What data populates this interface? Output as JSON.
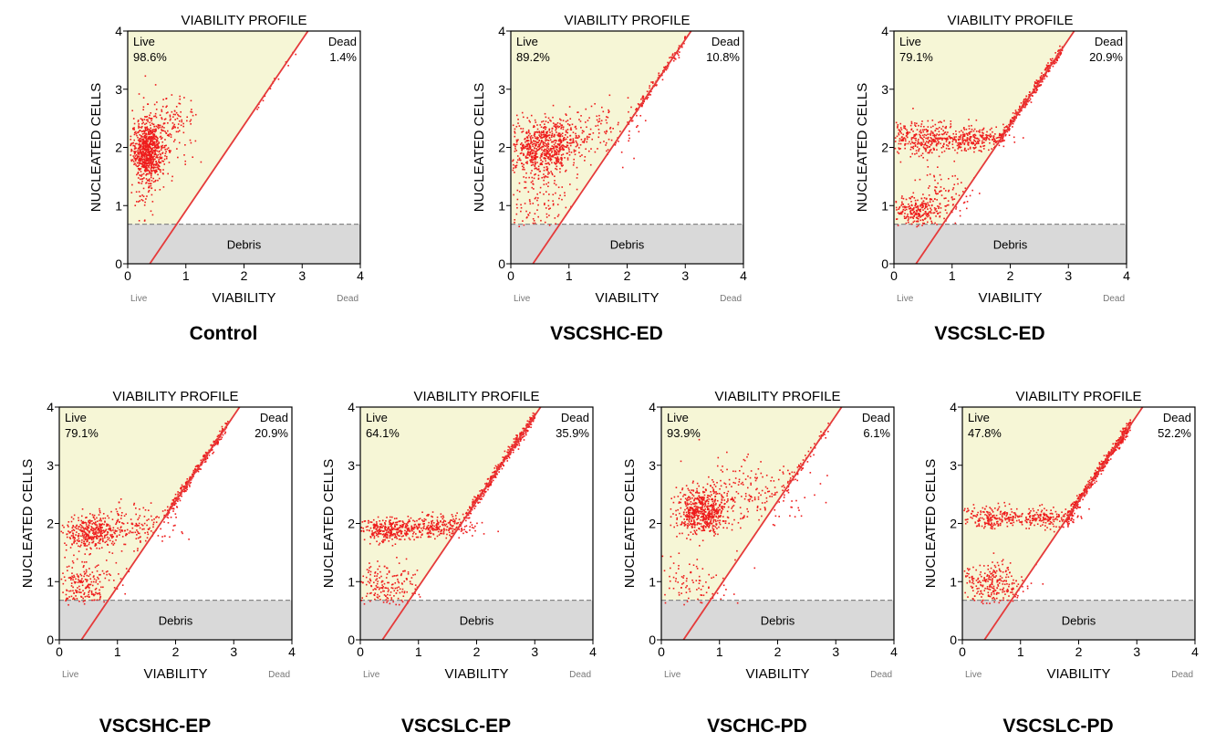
{
  "chart_data": [
    {
      "type": "scatter",
      "title": "VIABILITY PROFILE",
      "xlabel": "VIABILITY",
      "ylabel": "NUCLEATED CELLS",
      "x_end_labels": [
        "Live",
        "Dead"
      ],
      "xlim": [
        0,
        4
      ],
      "ylim": [
        0,
        4
      ],
      "xticks": [
        "0",
        "1",
        "2",
        "3",
        "4"
      ],
      "yticks": [
        "0",
        "1",
        "2",
        "3",
        "4"
      ],
      "regions": {
        "live": "Live",
        "dead": "Dead",
        "debris": "Debris"
      },
      "debris_threshold": 0.68,
      "gate_line": {
        "x0": 0.38,
        "y0": 0,
        "x1": 3.1,
        "y1": 4
      },
      "live_pct": "98.6%",
      "dead_pct": "1.4%",
      "caption": "Control",
      "clusters": [
        {
          "cx": 0.35,
          "cy": 1.95,
          "sx": 0.14,
          "sy": 0.25,
          "n": 750
        },
        {
          "cx": 0.7,
          "cy": 2.35,
          "sx": 0.25,
          "sy": 0.3,
          "n": 150
        },
        {
          "cx": 0.3,
          "cy": 1.3,
          "sx": 0.12,
          "sy": 0.35,
          "n": 60
        }
      ],
      "dead_band": {
        "x0": 2.2,
        "x1": 2.9,
        "n": 15,
        "jitter": 0.05
      }
    },
    {
      "type": "scatter",
      "title": "VIABILITY PROFILE",
      "xlabel": "VIABILITY",
      "ylabel": "NUCLEATED CELLS",
      "x_end_labels": [
        "Live",
        "Dead"
      ],
      "xlim": [
        0,
        4
      ],
      "ylim": [
        0,
        4
      ],
      "xticks": [
        "0",
        "1",
        "2",
        "3",
        "4"
      ],
      "yticks": [
        "0",
        "1",
        "2",
        "3",
        "4"
      ],
      "regions": {
        "live": "Live",
        "dead": "Dead",
        "debris": "Debris"
      },
      "debris_threshold": 0.68,
      "gate_line": {
        "x0": 0.38,
        "y0": 0,
        "x1": 3.1,
        "y1": 4
      },
      "live_pct": "89.2%",
      "dead_pct": "10.8%",
      "caption": "VSCSHC-ED",
      "clusters": [
        {
          "cx": 0.55,
          "cy": 2.0,
          "sx": 0.3,
          "sy": 0.22,
          "n": 650
        },
        {
          "cx": 1.3,
          "cy": 2.3,
          "sx": 0.45,
          "sy": 0.22,
          "n": 160
        },
        {
          "cx": 0.5,
          "cy": 1.2,
          "sx": 0.28,
          "sy": 0.35,
          "n": 150
        }
      ],
      "dead_band": {
        "x0": 2.0,
        "x1": 3.0,
        "n": 120,
        "jitter": 0.05
      }
    },
    {
      "type": "scatter",
      "title": "VIABILITY PROFILE",
      "xlabel": "VIABILITY",
      "ylabel": "NUCLEATED CELLS",
      "x_end_labels": [
        "Live",
        "Dead"
      ],
      "xlim": [
        0,
        4
      ],
      "ylim": [
        0,
        4
      ],
      "xticks": [
        "0",
        "1",
        "2",
        "3",
        "4"
      ],
      "yticks": [
        "0",
        "1",
        "2",
        "3",
        "4"
      ],
      "regions": {
        "live": "Live",
        "dead": "Dead",
        "debris": "Debris"
      },
      "debris_threshold": 0.68,
      "gate_line": {
        "x0": 0.38,
        "y0": 0,
        "x1": 3.1,
        "y1": 4
      },
      "live_pct": "79.1%",
      "dead_pct": "20.9%",
      "caption": "VSCSLC-ED",
      "clusters": [
        {
          "cx": 0.5,
          "cy": 2.15,
          "sx": 0.32,
          "sy": 0.15,
          "n": 320
        },
        {
          "cx": 1.35,
          "cy": 2.15,
          "sx": 0.3,
          "sy": 0.1,
          "n": 260
        },
        {
          "cx": 0.4,
          "cy": 0.9,
          "sx": 0.22,
          "sy": 0.13,
          "n": 260
        },
        {
          "cx": 0.9,
          "cy": 1.2,
          "sx": 0.25,
          "sy": 0.2,
          "n": 80
        }
      ],
      "dead_band": {
        "x0": 1.8,
        "x1": 2.9,
        "n": 300,
        "jitter": 0.05
      }
    },
    {
      "type": "scatter",
      "title": "VIABILITY PROFILE",
      "xlabel": "VIABILITY",
      "ylabel": "NUCLEATED CELLS",
      "x_end_labels": [
        "Live",
        "Dead"
      ],
      "xlim": [
        0,
        4
      ],
      "ylim": [
        0,
        4
      ],
      "xticks": [
        "0",
        "1",
        "2",
        "3",
        "4"
      ],
      "yticks": [
        "0",
        "1",
        "2",
        "3",
        "4"
      ],
      "regions": {
        "live": "Live",
        "dead": "Dead",
        "debris": "Debris"
      },
      "debris_threshold": 0.68,
      "gate_line": {
        "x0": 0.38,
        "y0": 0,
        "x1": 3.1,
        "y1": 4
      },
      "live_pct": "79.1%",
      "dead_pct": "20.9%",
      "caption": "VSCSHC-EP",
      "clusters": [
        {
          "cx": 0.55,
          "cy": 1.85,
          "sx": 0.25,
          "sy": 0.15,
          "n": 340
        },
        {
          "cx": 1.2,
          "cy": 1.95,
          "sx": 0.4,
          "sy": 0.2,
          "n": 180
        },
        {
          "cx": 0.4,
          "cy": 0.95,
          "sx": 0.3,
          "sy": 0.2,
          "n": 230
        }
      ],
      "dead_band": {
        "x0": 1.8,
        "x1": 2.9,
        "n": 280,
        "jitter": 0.05
      }
    },
    {
      "type": "scatter",
      "title": "VIABILITY PROFILE",
      "xlabel": "VIABILITY",
      "ylabel": "NUCLEATED CELLS",
      "x_end_labels": [
        "Live",
        "Dead"
      ],
      "xlim": [
        0,
        4
      ],
      "ylim": [
        0,
        4
      ],
      "xticks": [
        "0",
        "1",
        "2",
        "3",
        "4"
      ],
      "yticks": [
        "0",
        "1",
        "2",
        "3",
        "4"
      ],
      "regions": {
        "live": "Live",
        "dead": "Dead",
        "debris": "Debris"
      },
      "debris_threshold": 0.68,
      "gate_line": {
        "x0": 0.38,
        "y0": 0,
        "x1": 3.1,
        "y1": 4
      },
      "live_pct": "64.1%",
      "dead_pct": "35.9%",
      "caption": "VSCSLC-EP",
      "clusters": [
        {
          "cx": 0.5,
          "cy": 1.9,
          "sx": 0.25,
          "sy": 0.1,
          "n": 300
        },
        {
          "cx": 1.3,
          "cy": 1.95,
          "sx": 0.35,
          "sy": 0.1,
          "n": 250
        },
        {
          "cx": 0.4,
          "cy": 0.95,
          "sx": 0.3,
          "sy": 0.2,
          "n": 200
        }
      ],
      "dead_band": {
        "x0": 1.8,
        "x1": 3.0,
        "n": 380,
        "jitter": 0.05
      }
    },
    {
      "type": "scatter",
      "title": "VIABILITY PROFILE",
      "xlabel": "VIABILITY",
      "ylabel": "NUCLEATED CELLS",
      "x_end_labels": [
        "Live",
        "Dead"
      ],
      "xlim": [
        0,
        4
      ],
      "ylim": [
        0,
        4
      ],
      "xticks": [
        "0",
        "1",
        "2",
        "3",
        "4"
      ],
      "yticks": [
        "0",
        "1",
        "2",
        "3",
        "4"
      ],
      "regions": {
        "live": "Live",
        "dead": "Dead",
        "debris": "Debris"
      },
      "debris_threshold": 0.68,
      "gate_line": {
        "x0": 0.38,
        "y0": 0,
        "x1": 3.1,
        "y1": 4
      },
      "live_pct": "93.9%",
      "dead_pct": "6.1%",
      "caption": "VSCHC-PD",
      "clusters": [
        {
          "cx": 0.7,
          "cy": 2.2,
          "sx": 0.22,
          "sy": 0.2,
          "n": 600
        },
        {
          "cx": 1.5,
          "cy": 2.5,
          "sx": 0.5,
          "sy": 0.3,
          "n": 200
        },
        {
          "cx": 0.5,
          "cy": 1.0,
          "sx": 0.35,
          "sy": 0.2,
          "n": 100
        }
      ],
      "dead_band": {
        "x0": 2.1,
        "x1": 2.9,
        "n": 60,
        "jitter": 0.06
      }
    },
    {
      "type": "scatter",
      "title": "VIABILITY PROFILE",
      "xlabel": "VIABILITY",
      "ylabel": "NUCLEATED CELLS",
      "x_end_labels": [
        "Live",
        "Dead"
      ],
      "xlim": [
        0,
        4
      ],
      "ylim": [
        0,
        4
      ],
      "xticks": [
        "0",
        "1",
        "2",
        "3",
        "4"
      ],
      "yticks": [
        "0",
        "1",
        "2",
        "3",
        "4"
      ],
      "regions": {
        "live": "Live",
        "dead": "Dead",
        "debris": "Debris"
      },
      "debris_threshold": 0.68,
      "gate_line": {
        "x0": 0.38,
        "y0": 0,
        "x1": 3.1,
        "y1": 4
      },
      "live_pct": "47.8%",
      "dead_pct": "52.2%",
      "caption": "VSCSLC-PD",
      "clusters": [
        {
          "cx": 0.5,
          "cy": 2.1,
          "sx": 0.3,
          "sy": 0.1,
          "n": 200
        },
        {
          "cx": 1.4,
          "cy": 2.1,
          "sx": 0.3,
          "sy": 0.08,
          "n": 200
        },
        {
          "cx": 0.5,
          "cy": 0.95,
          "sx": 0.3,
          "sy": 0.18,
          "n": 260
        }
      ],
      "dead_band": {
        "x0": 1.8,
        "x1": 2.9,
        "n": 450,
        "jitter": 0.05
      }
    }
  ]
}
